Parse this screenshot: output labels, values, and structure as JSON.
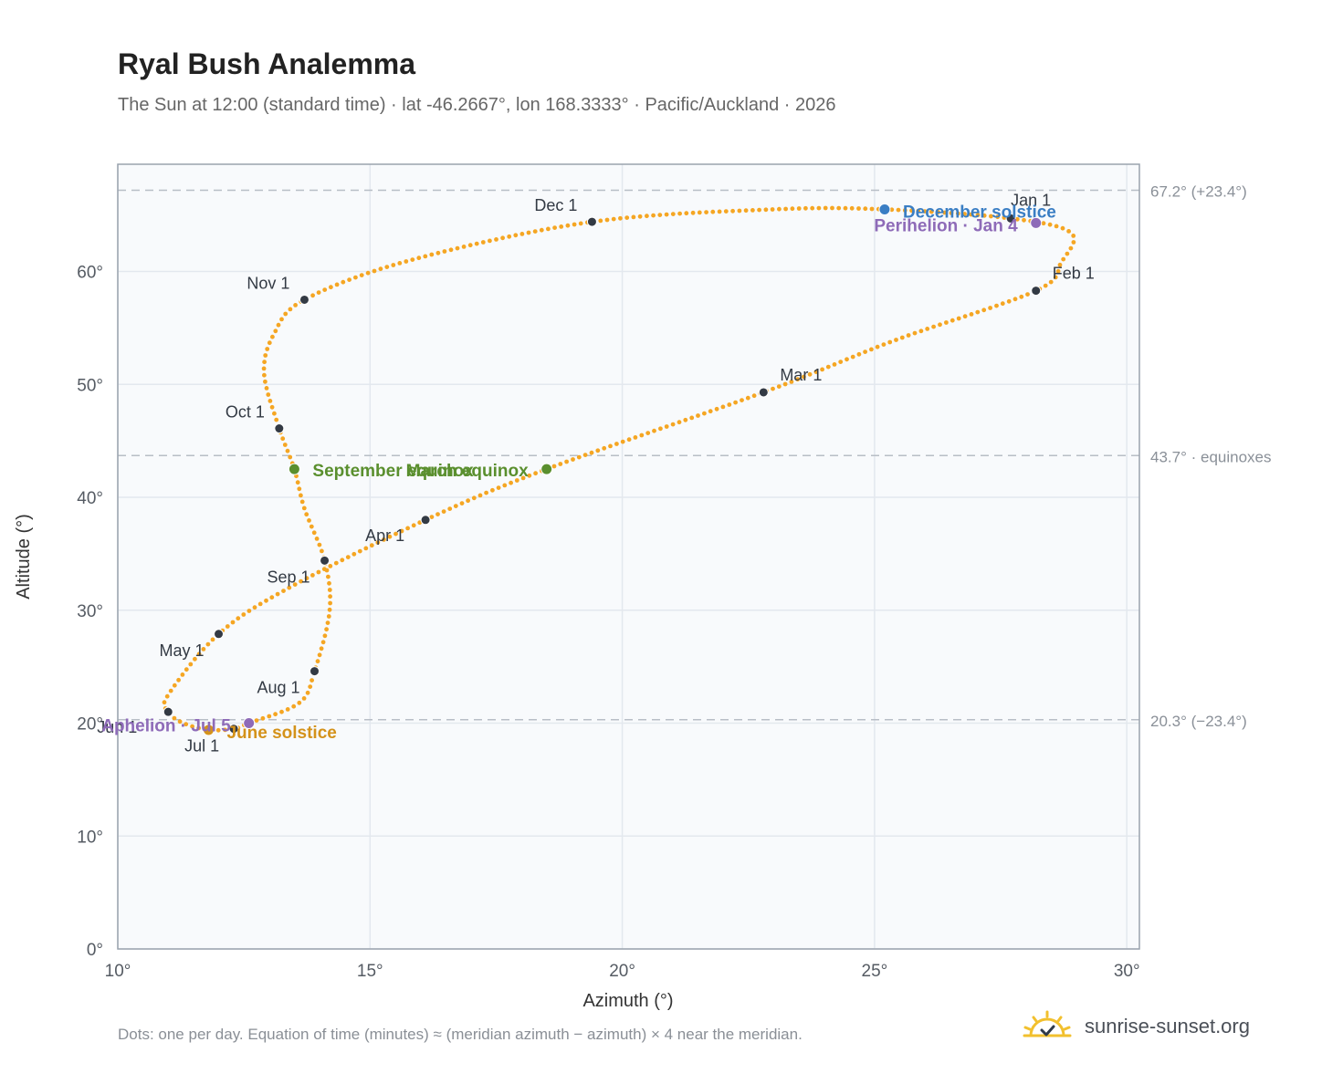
{
  "header": {
    "title": "Ryal Bush Analemma",
    "subtitle": "The Sun at 12:00 (standard time) · lat -46.2667°, lon 168.3333° · Pacific/Auckland · 2026"
  },
  "footer": {
    "note": "Dots: one per day. Equation of time (minutes) ≈ (meridian azimuth − azimuth) × 4 near the meridian.",
    "brand": "sunrise-sunset.org"
  },
  "colors": {
    "path": "#f5a623",
    "month_marker": "#333a44",
    "equinox": "#5a8f2e",
    "june_solstice": "#d4921a",
    "december_solstice": "#3a7ec4",
    "apsis": "#8e6bb8",
    "plot_bg": "#f8fafc",
    "grid": "#e3e8ee",
    "reference_line": "#b8bec6"
  },
  "chart_data": {
    "type": "scatter",
    "xlabel": "Azimuth (°)",
    "ylabel": "Altitude (°)",
    "xlim": [
      10,
      30.25
    ],
    "ylim": [
      0,
      69.5
    ],
    "x_ticks": [
      {
        "value": 10,
        "label": "10°"
      },
      {
        "value": 15,
        "label": "15°"
      },
      {
        "value": 20,
        "label": "20°"
      },
      {
        "value": 25,
        "label": "25°"
      },
      {
        "value": 30,
        "label": "30°"
      }
    ],
    "y_ticks": [
      {
        "value": 0,
        "label": "0°"
      },
      {
        "value": 10,
        "label": "10°"
      },
      {
        "value": 20,
        "label": "20°"
      },
      {
        "value": 30,
        "label": "30°"
      },
      {
        "value": 40,
        "label": "40°"
      },
      {
        "value": 50,
        "label": "50°"
      },
      {
        "value": 60,
        "label": "60°"
      }
    ],
    "grid": true,
    "reference_lines": [
      {
        "y": 67.2,
        "label": "67.2° (+23.4°)"
      },
      {
        "y": 43.7,
        "label": "43.7° · equinoxes"
      },
      {
        "y": 20.3,
        "label": "20.3° (−23.4°)"
      }
    ],
    "month_markers": [
      {
        "label": "Jan 1",
        "x": 27.7,
        "y": 64.7
      },
      {
        "label": "Feb 1",
        "x": 28.2,
        "y": 58.3
      },
      {
        "label": "Mar 1",
        "x": 22.8,
        "y": 49.3
      },
      {
        "label": "Apr 1",
        "x": 16.1,
        "y": 38.0
      },
      {
        "label": "May 1",
        "x": 12.0,
        "y": 27.9
      },
      {
        "label": "Jun 1",
        "x": 11.0,
        "y": 21.0
      },
      {
        "label": "Jul 1",
        "x": 12.3,
        "y": 19.5
      },
      {
        "label": "Aug 1",
        "x": 13.9,
        "y": 24.6
      },
      {
        "label": "Sep 1",
        "x": 14.1,
        "y": 34.4
      },
      {
        "label": "Oct 1",
        "x": 13.2,
        "y": 46.1
      },
      {
        "label": "Nov 1",
        "x": 13.7,
        "y": 57.5
      },
      {
        "label": "Dec 1",
        "x": 19.4,
        "y": 64.4
      }
    ],
    "events": [
      {
        "label": "December solstice",
        "x": 25.2,
        "y": 65.5,
        "kind": "december_solstice"
      },
      {
        "label": "Perihelion · Jan 4",
        "x": 28.2,
        "y": 64.3,
        "kind": "apsis"
      },
      {
        "label": "March equinox",
        "x": 18.5,
        "y": 42.5,
        "kind": "equinox"
      },
      {
        "label": "September equinox",
        "x": 13.5,
        "y": 42.5,
        "kind": "equinox"
      },
      {
        "label": "June solstice",
        "x": 11.8,
        "y": 19.4,
        "kind": "june_solstice"
      },
      {
        "label": "Aphelion · Jul 5",
        "x": 12.6,
        "y": 20.0,
        "kind": "apsis"
      }
    ],
    "path_vertices": [
      {
        "x": 27.7,
        "y": 64.7
      },
      {
        "x": 28.9,
        "y": 63.4
      },
      {
        "x": 28.7,
        "y": 60.8
      },
      {
        "x": 28.2,
        "y": 58.3
      },
      {
        "x": 25.4,
        "y": 53.9
      },
      {
        "x": 22.8,
        "y": 49.3
      },
      {
        "x": 18.5,
        "y": 42.5
      },
      {
        "x": 16.1,
        "y": 38.0
      },
      {
        "x": 13.4,
        "y": 32.0
      },
      {
        "x": 12.0,
        "y": 27.9
      },
      {
        "x": 11.0,
        "y": 22.5
      },
      {
        "x": 11.0,
        "y": 21.0
      },
      {
        "x": 11.3,
        "y": 20.0
      },
      {
        "x": 11.8,
        "y": 19.4
      },
      {
        "x": 12.3,
        "y": 19.5
      },
      {
        "x": 12.6,
        "y": 20.0
      },
      {
        "x": 13.6,
        "y": 21.8
      },
      {
        "x": 13.9,
        "y": 24.6
      },
      {
        "x": 14.2,
        "y": 30.0
      },
      {
        "x": 14.1,
        "y": 34.4
      },
      {
        "x": 13.7,
        "y": 39.0
      },
      {
        "x": 13.5,
        "y": 42.5
      },
      {
        "x": 13.2,
        "y": 46.1
      },
      {
        "x": 12.9,
        "y": 51.0
      },
      {
        "x": 13.1,
        "y": 54.5
      },
      {
        "x": 13.7,
        "y": 57.5
      },
      {
        "x": 15.8,
        "y": 61.0
      },
      {
        "x": 19.4,
        "y": 64.4
      },
      {
        "x": 23.0,
        "y": 65.5
      },
      {
        "x": 25.2,
        "y": 65.5
      },
      {
        "x": 27.7,
        "y": 64.7
      }
    ]
  }
}
